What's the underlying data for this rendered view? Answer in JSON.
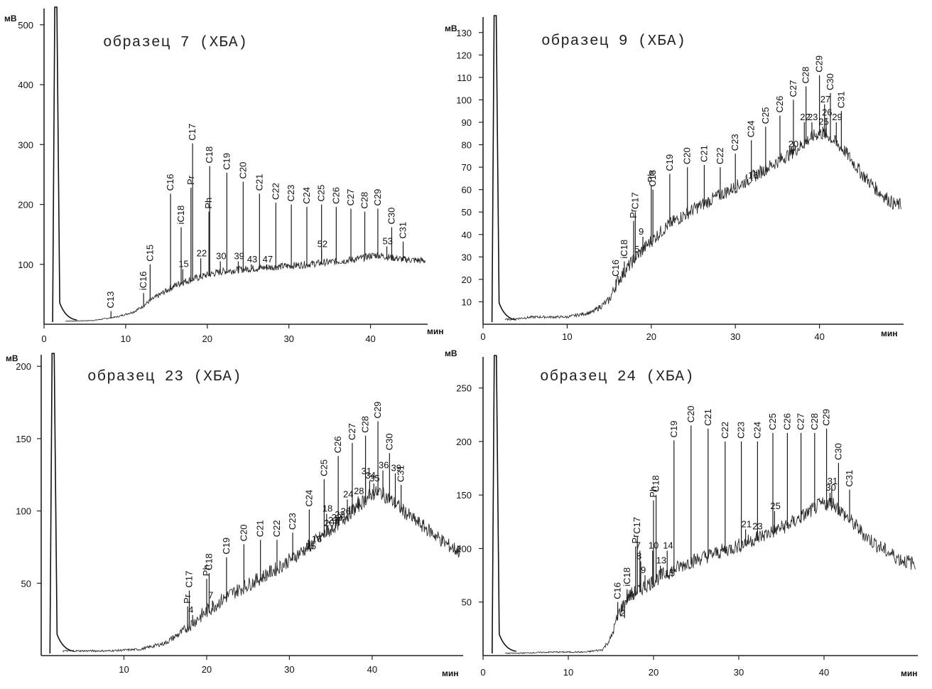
{
  "chart_data": [
    {
      "type": "line",
      "title": "образец 7 (ХБА)",
      "xlabel": "мин",
      "ylabel": "мВ",
      "xlim": [
        0,
        47
      ],
      "ylim": [
        0,
        520
      ],
      "x_ticks": [
        0,
        10,
        20,
        30,
        40
      ],
      "y_ticks": [
        100,
        200,
        300,
        400,
        500
      ],
      "baseline": [
        [
          0,
          5
        ],
        [
          1.5,
          5
        ],
        [
          3,
          5
        ],
        [
          6,
          6
        ],
        [
          9,
          12
        ],
        [
          11,
          20
        ],
        [
          12,
          28
        ],
        [
          13,
          38
        ],
        [
          14,
          46
        ],
        [
          15,
          54
        ],
        [
          16,
          62
        ],
        [
          17,
          68
        ],
        [
          18,
          72
        ],
        [
          20,
          80
        ],
        [
          22,
          86
        ],
        [
          25,
          90
        ],
        [
          28,
          93
        ],
        [
          31,
          96
        ],
        [
          34,
          100
        ],
        [
          37,
          104
        ],
        [
          39,
          108
        ],
        [
          40,
          112
        ],
        [
          41,
          113
        ],
        [
          42,
          110
        ],
        [
          44,
          106
        ],
        [
          46,
          104
        ]
      ],
      "noise": 6,
      "peaks": [
        {
          "label": "C13",
          "x": 8.2,
          "h": 22
        },
        {
          "label": "iC16",
          "x": 12.2,
          "h": 52
        },
        {
          "label": "C15",
          "x": 13.0,
          "h": 100
        },
        {
          "label": "C16",
          "x": 15.5,
          "h": 218
        },
        {
          "label": "iC18",
          "x": 16.8,
          "h": 162
        },
        {
          "label": "Pr",
          "x": 18.0,
          "h": 228
        },
        {
          "label": "C17",
          "x": 18.2,
          "h": 302
        },
        {
          "label": "Ph",
          "x": 20.2,
          "h": 188
        },
        {
          "label": "C18",
          "x": 20.3,
          "h": 264
        },
        {
          "label": "C19",
          "x": 22.4,
          "h": 253
        },
        {
          "label": "C20",
          "x": 24.4,
          "h": 238
        },
        {
          "label": "C21",
          "x": 26.4,
          "h": 218
        },
        {
          "label": "C22",
          "x": 28.4,
          "h": 203
        },
        {
          "label": "C23",
          "x": 30.3,
          "h": 200
        },
        {
          "label": "C24",
          "x": 32.2,
          "h": 196
        },
        {
          "label": "C25",
          "x": 34.0,
          "h": 200
        },
        {
          "label": "C26",
          "x": 35.8,
          "h": 196
        },
        {
          "label": "C27",
          "x": 37.6,
          "h": 193
        },
        {
          "label": "C28",
          "x": 39.3,
          "h": 188
        },
        {
          "label": "C29",
          "x": 40.9,
          "h": 193
        },
        {
          "label": "C30",
          "x": 42.6,
          "h": 162
        },
        {
          "label": "C31",
          "x": 44.0,
          "h": 138
        },
        {
          "label": "52",
          "x": 34.0,
          "h": 125
        },
        {
          "label": "53",
          "x": 42.0,
          "h": 130
        },
        {
          "label": "22",
          "x": 19.2,
          "h": 110
        },
        {
          "label": "15",
          "x": 17.0,
          "h": 92
        },
        {
          "label": "30",
          "x": 21.6,
          "h": 105
        },
        {
          "label": "39",
          "x": 23.8,
          "h": 105
        },
        {
          "label": "43",
          "x": 25.4,
          "h": 100
        },
        {
          "label": "47",
          "x": 27.3,
          "h": 100
        }
      ]
    },
    {
      "type": "line",
      "title": "образец 9 (ХБА)",
      "xlabel": "мин",
      "ylabel": "мВ",
      "xlim": [
        0,
        50
      ],
      "ylim": [
        0,
        135
      ],
      "x_ticks": [
        0,
        10,
        20,
        30,
        40
      ],
      "y_ticks": [
        10,
        20,
        30,
        40,
        50,
        60,
        70,
        80,
        90,
        100,
        110,
        120,
        130
      ],
      "baseline": [
        [
          0,
          2
        ],
        [
          1.5,
          2
        ],
        [
          3,
          2
        ],
        [
          6,
          3
        ],
        [
          10,
          3
        ],
        [
          13,
          5
        ],
        [
          15,
          10
        ],
        [
          16,
          18
        ],
        [
          18,
          28
        ],
        [
          20,
          36
        ],
        [
          22,
          43
        ],
        [
          25,
          50
        ],
        [
          28,
          56
        ],
        [
          31,
          62
        ],
        [
          34,
          69
        ],
        [
          37,
          76
        ],
        [
          39,
          82
        ],
        [
          40,
          84
        ],
        [
          41,
          83
        ],
        [
          43,
          76
        ],
        [
          45,
          66
        ],
        [
          47,
          58
        ],
        [
          49,
          52
        ],
        [
          50,
          52
        ]
      ],
      "noise": 3,
      "peaks": [
        {
          "label": "C16",
          "x": 15.8,
          "h": 20
        },
        {
          "label": "iC18",
          "x": 16.8,
          "h": 28
        },
        {
          "label": "Pr",
          "x": 17.9,
          "h": 46
        },
        {
          "label": "C17",
          "x": 18.1,
          "h": 50
        },
        {
          "label": "Ph",
          "x": 20.0,
          "h": 62
        },
        {
          "label": "C18",
          "x": 20.2,
          "h": 60
        },
        {
          "label": "C19",
          "x": 22.2,
          "h": 67
        },
        {
          "label": "C20",
          "x": 24.3,
          "h": 70
        },
        {
          "label": "C21",
          "x": 26.3,
          "h": 71
        },
        {
          "label": "C22",
          "x": 28.2,
          "h": 70
        },
        {
          "label": "C23",
          "x": 30.0,
          "h": 76
        },
        {
          "label": "C24",
          "x": 31.9,
          "h": 82
        },
        {
          "label": "C25",
          "x": 33.6,
          "h": 88
        },
        {
          "label": "C26",
          "x": 35.3,
          "h": 93
        },
        {
          "label": "C27",
          "x": 36.9,
          "h": 100
        },
        {
          "label": "C28",
          "x": 38.4,
          "h": 106
        },
        {
          "label": "C29",
          "x": 40.0,
          "h": 111
        },
        {
          "label": "C30",
          "x": 41.3,
          "h": 103
        },
        {
          "label": "C31",
          "x": 42.6,
          "h": 95
        },
        {
          "label": "9",
          "x": 19.0,
          "h": 39
        },
        {
          "label": "5",
          "x": 18.5,
          "h": 31
        },
        {
          "label": "16",
          "x": 32.0,
          "h": 64
        },
        {
          "label": "20",
          "x": 36.8,
          "h": 78
        },
        {
          "label": "22",
          "x": 38.2,
          "h": 90
        },
        {
          "label": "23",
          "x": 39.1,
          "h": 90
        },
        {
          "label": "25",
          "x": 40.4,
          "h": 88
        },
        {
          "label": "26",
          "x": 40.8,
          "h": 92
        },
        {
          "label": "27",
          "x": 40.6,
          "h": 98
        },
        {
          "label": "29",
          "x": 42.0,
          "h": 90
        }
      ]
    },
    {
      "type": "line",
      "title": "образец 23 (ХБА)",
      "xlabel": "мин",
      "ylabel": "мВ",
      "xlim": [
        0,
        51
      ],
      "ylim": [
        0,
        205
      ],
      "x_ticks": [
        10,
        20,
        30,
        40
      ],
      "y_ticks": [
        50,
        100,
        150,
        200
      ],
      "baseline": [
        [
          0,
          3
        ],
        [
          1.5,
          3
        ],
        [
          4,
          3
        ],
        [
          8,
          3
        ],
        [
          12,
          4
        ],
        [
          15,
          8
        ],
        [
          17,
          15
        ],
        [
          19,
          24
        ],
        [
          21,
          33
        ],
        [
          23,
          41
        ],
        [
          26,
          50
        ],
        [
          29,
          60
        ],
        [
          32,
          72
        ],
        [
          35,
          85
        ],
        [
          37,
          95
        ],
        [
          39,
          105
        ],
        [
          40,
          110
        ],
        [
          41,
          111
        ],
        [
          43,
          102
        ],
        [
          45,
          92
        ],
        [
          47,
          84
        ],
        [
          49,
          75
        ],
        [
          50.5,
          70
        ]
      ],
      "noise": 5,
      "peaks": [
        {
          "label": "Pr",
          "x": 17.7,
          "h": 34
        },
        {
          "label": "C17",
          "x": 17.9,
          "h": 45
        },
        {
          "label": "4",
          "x": 18.3,
          "h": 28
        },
        {
          "label": "Ph",
          "x": 20.0,
          "h": 53
        },
        {
          "label": "C18",
          "x": 20.3,
          "h": 57
        },
        {
          "label": "7",
          "x": 20.7,
          "h": 38
        },
        {
          "label": "C19",
          "x": 22.4,
          "h": 68
        },
        {
          "label": "C20",
          "x": 24.5,
          "h": 77
        },
        {
          "label": "C21",
          "x": 26.5,
          "h": 80
        },
        {
          "label": "C22",
          "x": 28.5,
          "h": 80
        },
        {
          "label": "C23",
          "x": 30.4,
          "h": 85
        },
        {
          "label": "C24",
          "x": 32.4,
          "h": 101
        },
        {
          "label": "C25",
          "x": 34.2,
          "h": 122
        },
        {
          "label": "C26",
          "x": 35.9,
          "h": 138
        },
        {
          "label": "C27",
          "x": 37.6,
          "h": 147
        },
        {
          "label": "C28",
          "x": 39.2,
          "h": 152
        },
        {
          "label": "C29",
          "x": 40.7,
          "h": 162
        },
        {
          "label": "C30",
          "x": 42.1,
          "h": 140
        },
        {
          "label": "C31",
          "x": 43.5,
          "h": 118
        },
        {
          "label": "15",
          "x": 32.5,
          "h": 72
        },
        {
          "label": "16",
          "x": 33.2,
          "h": 77
        },
        {
          "label": "18",
          "x": 34.5,
          "h": 98
        },
        {
          "label": "20",
          "x": 34.7,
          "h": 88
        },
        {
          "label": "21",
          "x": 35.2,
          "h": 90
        },
        {
          "label": "22",
          "x": 35.6,
          "h": 92
        },
        {
          "label": "23",
          "x": 36.0,
          "h": 94
        },
        {
          "label": "26",
          "x": 36.7,
          "h": 96
        },
        {
          "label": "24",
          "x": 37.0,
          "h": 108
        },
        {
          "label": "28",
          "x": 38.3,
          "h": 110
        },
        {
          "label": "31",
          "x": 39.2,
          "h": 124
        },
        {
          "label": "34",
          "x": 39.7,
          "h": 121
        },
        {
          "label": "35",
          "x": 40.2,
          "h": 119
        },
        {
          "label": "36",
          "x": 41.3,
          "h": 128
        },
        {
          "label": "39",
          "x": 42.8,
          "h": 126
        }
      ]
    },
    {
      "type": "line",
      "title": "образец 24 (ХБА)",
      "xlabel": "мин",
      "ylabel": "мВ",
      "xlim": [
        0,
        51
      ],
      "ylim": [
        0,
        275
      ],
      "x_ticks": [
        0,
        10,
        20,
        30,
        40
      ],
      "y_ticks": [
        50,
        100,
        150,
        200,
        250
      ],
      "baseline": [
        [
          0,
          2
        ],
        [
          1.5,
          2
        ],
        [
          4,
          2
        ],
        [
          8,
          3
        ],
        [
          12,
          3
        ],
        [
          14,
          5
        ],
        [
          15,
          15
        ],
        [
          16,
          38
        ],
        [
          17,
          52
        ],
        [
          19,
          62
        ],
        [
          21,
          72
        ],
        [
          24,
          84
        ],
        [
          27,
          92
        ],
        [
          30,
          100
        ],
        [
          33,
          110
        ],
        [
          36,
          120
        ],
        [
          38,
          130
        ],
        [
          39.5,
          138
        ],
        [
          41,
          140
        ],
        [
          43,
          124
        ],
        [
          45,
          108
        ],
        [
          47,
          96
        ],
        [
          49,
          87
        ],
        [
          51,
          82
        ]
      ],
      "noise": 7,
      "peaks": [
        {
          "label": "C16",
          "x": 15.8,
          "h": 50
        },
        {
          "label": "2",
          "x": 16.6,
          "h": 35
        },
        {
          "label": "iC18",
          "x": 16.9,
          "h": 62
        },
        {
          "label": "4",
          "x": 17.6,
          "h": 52
        },
        {
          "label": "Pr",
          "x": 17.9,
          "h": 102
        },
        {
          "label": "C17",
          "x": 18.1,
          "h": 111
        },
        {
          "label": "7",
          "x": 18.4,
          "h": 98
        },
        {
          "label": "8",
          "x": 18.5,
          "h": 88
        },
        {
          "label": "9",
          "x": 19.0,
          "h": 75
        },
        {
          "label": "10",
          "x": 19.9,
          "h": 98
        },
        {
          "label": "Ph",
          "x": 20.0,
          "h": 145
        },
        {
          "label": "C18",
          "x": 20.3,
          "h": 150
        },
        {
          "label": "13",
          "x": 20.8,
          "h": 84
        },
        {
          "label": "14",
          "x": 21.6,
          "h": 98
        },
        {
          "label": "15",
          "x": 21.8,
          "h": 72
        },
        {
          "label": "C19",
          "x": 22.4,
          "h": 201
        },
        {
          "label": "C20",
          "x": 24.4,
          "h": 215
        },
        {
          "label": "C21",
          "x": 26.4,
          "h": 212
        },
        {
          "label": "C22",
          "x": 28.4,
          "h": 200
        },
        {
          "label": "C23",
          "x": 30.3,
          "h": 200
        },
        {
          "label": "C24",
          "x": 32.2,
          "h": 200
        },
        {
          "label": "C25",
          "x": 34.0,
          "h": 208
        },
        {
          "label": "C26",
          "x": 35.7,
          "h": 208
        },
        {
          "label": "C27",
          "x": 37.3,
          "h": 208
        },
        {
          "label": "C28",
          "x": 38.9,
          "h": 208
        },
        {
          "label": "C29",
          "x": 40.3,
          "h": 212
        },
        {
          "label": "C30",
          "x": 41.7,
          "h": 180
        },
        {
          "label": "C31",
          "x": 43.0,
          "h": 155
        },
        {
          "label": "21",
          "x": 30.8,
          "h": 118
        },
        {
          "label": "23",
          "x": 32.1,
          "h": 116
        },
        {
          "label": "25",
          "x": 34.2,
          "h": 135
        },
        {
          "label": "30",
          "x": 40.7,
          "h": 152
        },
        {
          "label": "31",
          "x": 40.9,
          "h": 158
        }
      ]
    }
  ]
}
